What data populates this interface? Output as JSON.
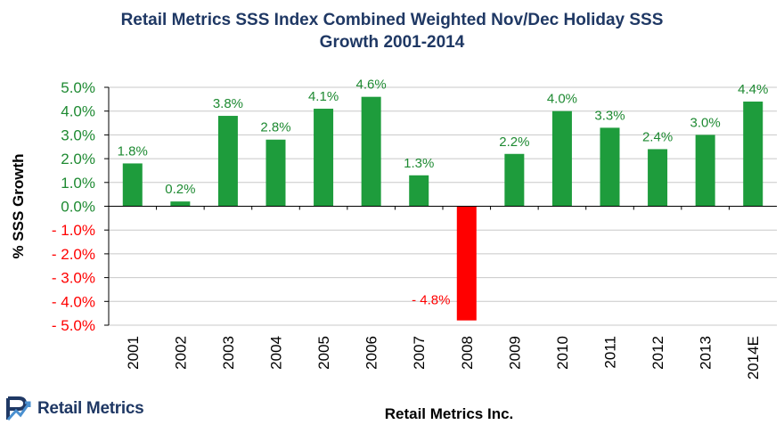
{
  "chart_data": {
    "type": "bar",
    "title_lines": [
      "Retail Metrics SSS Index Combined Weighted Nov/Dec Holiday SSS",
      "Growth 2001-2014"
    ],
    "xlabel": "Retail Metrics Inc.",
    "ylabel": "% SSS Growth",
    "ylim": [
      -5.0,
      5.0
    ],
    "ytick_step": 1.0,
    "grid": true,
    "categories": [
      "2001",
      "2002",
      "2003",
      "2004",
      "2005",
      "2006",
      "2007",
      "2008",
      "2009",
      "2010",
      "2011",
      "2012",
      "2013",
      "2014E"
    ],
    "values": [
      1.8,
      0.2,
      3.8,
      2.8,
      4.1,
      4.6,
      1.3,
      -4.8,
      2.2,
      4.0,
      3.3,
      2.4,
      3.0,
      4.4
    ],
    "data_labels": [
      "1.8%",
      "0.2%",
      "3.8%",
      "2.8%",
      "4.1%",
      "4.6%",
      "1.3%",
      "- 4.8%",
      "2.2%",
      "4.0%",
      "3.3%",
      "2.4%",
      "3.0%",
      "4.4%"
    ],
    "ytick_labels": [
      "- 5.0%",
      "- 4.0%",
      "- 3.0%",
      "- 2.0%",
      "- 1.0%",
      "0.0%",
      "1.0%",
      "2.0%",
      "3.0%",
      "4.0%",
      "5.0%"
    ],
    "colors": {
      "positive_bar": "#1e9c3c",
      "negative_bar": "#ff0000",
      "positive_text": "#1e8a32",
      "negative_text": "#ff0000",
      "grid": "#c8c8c8",
      "title": "#1f3864"
    }
  },
  "logo": {
    "text": "Retail Metrics",
    "icon": "retail-metrics-logo-icon"
  }
}
